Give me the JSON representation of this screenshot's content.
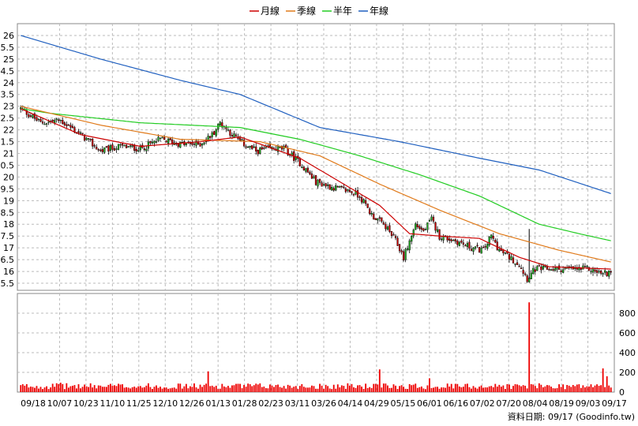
{
  "chart_data": {
    "type": "candlestick",
    "legend": [
      {
        "name": "月線",
        "color": "#cc0000"
      },
      {
        "name": "季線",
        "color": "#e07a1a"
      },
      {
        "name": "半年",
        "color": "#22cc22"
      },
      {
        "name": "年線",
        "color": "#1f5fbf"
      }
    ],
    "price_axis": {
      "ylim": [
        15.2,
        26.5
      ],
      "ticks": [
        "26",
        "25.5",
        "25",
        "24.5",
        "24",
        "23.5",
        "23",
        "22.5",
        "22",
        "21.5",
        "21",
        "20.5",
        "20",
        "19.5",
        "19",
        "18.5",
        "18",
        "17.5",
        "17",
        "16.5",
        "16",
        "15.5"
      ]
    },
    "volume_axis": {
      "ylim": [
        0,
        1000
      ],
      "ticks": [
        "800",
        "600",
        "400",
        "200",
        "0"
      ]
    },
    "x_ticks": [
      "09/18",
      "10/07",
      "10/23",
      "11/10",
      "11/25",
      "12/10",
      "12/26",
      "01/13",
      "01/28",
      "02/23",
      "03/11",
      "03/26",
      "04/14",
      "04/29",
      "05/15",
      "06/01",
      "06/16",
      "07/02",
      "07/20",
      "08/04",
      "08/19",
      "09/03",
      "09/17"
    ],
    "footer": "資料日期: 09/17  (Goodinfo.tw)",
    "up_color": "#22aa22",
    "down_color": "#cc0000",
    "volume_color": "#ee0000",
    "grid": true,
    "legend_position": "top-center",
    "price_keypoints": [
      [
        0,
        22.9
      ],
      [
        10,
        22.3
      ],
      [
        20,
        22.4
      ],
      [
        30,
        21.8
      ],
      [
        40,
        21.1
      ],
      [
        50,
        21.3
      ],
      [
        60,
        21.2
      ],
      [
        70,
        21.6
      ],
      [
        80,
        21.4
      ],
      [
        90,
        21.4
      ],
      [
        96,
        21.8
      ],
      [
        100,
        22.3
      ],
      [
        110,
        21.5
      ],
      [
        118,
        21.1
      ],
      [
        125,
        21.2
      ],
      [
        132,
        21.2
      ],
      [
        140,
        20.6
      ],
      [
        148,
        19.8
      ],
      [
        155,
        19.6
      ],
      [
        165,
        19.4
      ],
      [
        170,
        19.2
      ],
      [
        176,
        18.4
      ],
      [
        183,
        17.9
      ],
      [
        188,
        17.3
      ],
      [
        192,
        16.6
      ],
      [
        196,
        17.5
      ],
      [
        198,
        18.0
      ],
      [
        202,
        17.7
      ],
      [
        206,
        18.2
      ],
      [
        210,
        17.5
      ],
      [
        218,
        17.3
      ],
      [
        226,
        17.0
      ],
      [
        232,
        16.9
      ],
      [
        236,
        17.5
      ],
      [
        240,
        16.9
      ],
      [
        245,
        16.6
      ],
      [
        250,
        16.3
      ],
      [
        254,
        15.7
      ],
      [
        258,
        16.1
      ],
      [
        265,
        16.1
      ],
      [
        275,
        16.1
      ],
      [
        285,
        16.1
      ],
      [
        292,
        15.9
      ],
      [
        296,
        16.0
      ]
    ],
    "volume_spikes": [
      [
        20,
        95
      ],
      [
        94,
        210
      ],
      [
        180,
        230
      ],
      [
        205,
        140
      ],
      [
        255,
        910
      ],
      [
        292,
        240
      ],
      [
        294,
        160
      ]
    ],
    "ma_month": [
      [
        0,
        22.9
      ],
      [
        30,
        21.8
      ],
      [
        60,
        21.3
      ],
      [
        90,
        21.5
      ],
      [
        110,
        21.7
      ],
      [
        140,
        20.8
      ],
      [
        160,
        19.8
      ],
      [
        180,
        18.8
      ],
      [
        195,
        17.6
      ],
      [
        210,
        17.5
      ],
      [
        230,
        17.4
      ],
      [
        250,
        16.6
      ],
      [
        265,
        16.2
      ],
      [
        296,
        16.1
      ]
    ],
    "ma_quarter": [
      [
        0,
        23.0
      ],
      [
        40,
        22.2
      ],
      [
        80,
        21.6
      ],
      [
        120,
        21.5
      ],
      [
        150,
        20.9
      ],
      [
        180,
        19.7
      ],
      [
        210,
        18.6
      ],
      [
        240,
        17.6
      ],
      [
        270,
        16.9
      ],
      [
        296,
        16.4
      ]
    ],
    "ma_half": [
      [
        0,
        22.9
      ],
      [
        15,
        22.7
      ],
      [
        60,
        22.3
      ],
      [
        110,
        22.1
      ],
      [
        140,
        21.6
      ],
      [
        170,
        20.9
      ],
      [
        200,
        20.1
      ],
      [
        230,
        19.2
      ],
      [
        260,
        18.0
      ],
      [
        280,
        17.6
      ],
      [
        296,
        17.3
      ]
    ],
    "ma_year": [
      [
        0,
        26.0
      ],
      [
        40,
        25.0
      ],
      [
        80,
        24.1
      ],
      [
        110,
        23.5
      ],
      [
        150,
        22.1
      ],
      [
        190,
        21.5
      ],
      [
        230,
        20.8
      ],
      [
        260,
        20.3
      ],
      [
        296,
        19.3
      ]
    ]
  }
}
